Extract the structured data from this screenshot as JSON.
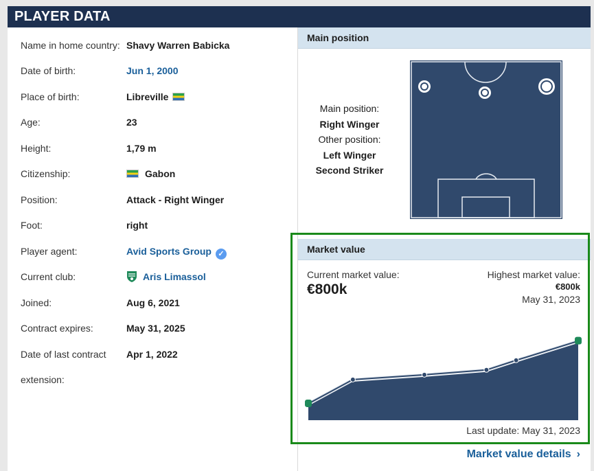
{
  "header": {
    "title": "PLAYER DATA"
  },
  "player": {
    "rows": [
      {
        "label": "Name in home country:",
        "value": "Shavy Warren Babicka"
      },
      {
        "label": "Date of birth:",
        "value": "Jun 1, 2000"
      },
      {
        "label": "Place of birth:",
        "value": "Libreville"
      },
      {
        "label": "Age:",
        "value": "23"
      },
      {
        "label": "Height:",
        "value": "1,79 m"
      },
      {
        "label": "Citizenship:",
        "value": "Gabon"
      },
      {
        "label": "Position:",
        "value": "Attack - Right Winger"
      },
      {
        "label": "Foot:",
        "value": "right"
      },
      {
        "label": "Player agent:",
        "value": "Avid Sports Group"
      },
      {
        "label": "Current club:",
        "value": "Aris Limassol"
      },
      {
        "label": "Joined:",
        "value": "Aug 6, 2021"
      },
      {
        "label": "Contract expires:",
        "value": "May 31, 2025"
      },
      {
        "label": "Date of last contract",
        "value": "Apr 1, 2022"
      },
      {
        "label": "extension:",
        "value": ""
      }
    ],
    "flag_icon": "gabon-flag-icon",
    "verified_icon": "verified-check-icon",
    "club_icon": "aris-limassol-crest-icon"
  },
  "main_position": {
    "title": "Main position",
    "main_label": "Main position:",
    "main_value": "Right Winger",
    "other_label": "Other position:",
    "other_values": [
      "Left Winger",
      "Second Striker"
    ]
  },
  "market_value": {
    "title": "Market value",
    "current_label": "Current market value:",
    "current_value": "€800k",
    "highest_label": "Highest market value:",
    "highest_value": "€800k",
    "highest_date": "May 31, 2023",
    "last_update": "Last update: May 31, 2023",
    "details_link": "Market value details",
    "details_icon": "chevron-right-icon"
  },
  "chart_data": {
    "type": "area",
    "series": [
      {
        "values": [
          150,
          400,
          450,
          500,
          600,
          800
        ]
      }
    ],
    "ylim": [
      0,
      1000
    ],
    "grid": false
  },
  "colors": {
    "header_bg": "#1d3050",
    "box_header_bg": "#d4e3ef",
    "pitch_bg": "#30496c",
    "chart_fill": "#30496c",
    "link": "#1a5f9a",
    "highlight_border": "#1a8a1a"
  }
}
